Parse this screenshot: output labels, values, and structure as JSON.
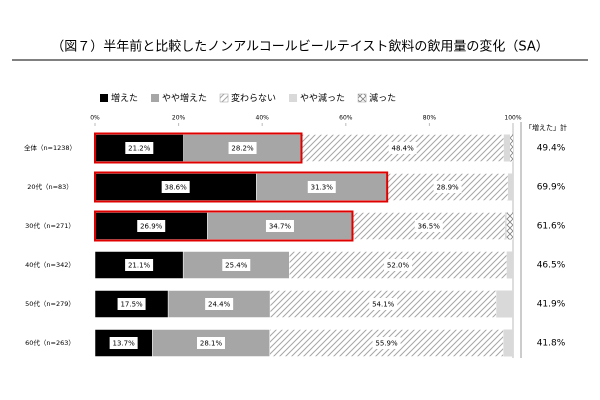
{
  "chart_data": {
    "type": "stacked_barh",
    "title": "（図７）半年前と比較したノンアルコールビールテイスト飲料の飲用量の変化（SA）",
    "categories": [
      "全体（n=1238）",
      "20代（n=83）",
      "30代（n=271）",
      "40代（n=342）",
      "50代（n=279）",
      "60代（n=263）"
    ],
    "series": [
      {
        "name": "増えた",
        "color": "#000000",
        "values": [
          21.2,
          38.6,
          26.9,
          21.1,
          17.5,
          13.7
        ],
        "value_labels": [
          "21.2%",
          "38.6%",
          "26.9%",
          "21.1%",
          "17.5%",
          "13.7%"
        ]
      },
      {
        "name": "やや増えた",
        "color": "#a6a6a6",
        "values": [
          28.2,
          31.3,
          34.7,
          25.4,
          24.4,
          28.1
        ],
        "value_labels": [
          "28.2%",
          "31.3%",
          "34.7%",
          "25.4%",
          "24.4%",
          "28.1%"
        ]
      },
      {
        "name": "変わらない",
        "color": "#a6a6a6",
        "pattern": "diagonal",
        "values": [
          48.4,
          28.9,
          36.5,
          52.0,
          54.1,
          55.9
        ],
        "value_labels": [
          "48.4%",
          "28.9%",
          "36.5%",
          "52.0%",
          "54.1%",
          "55.9%"
        ]
      },
      {
        "name": "やや減った",
        "color": "#d9d9d9",
        "values": [
          1.5,
          1.2,
          0.4,
          1.5,
          4.0,
          2.3
        ]
      },
      {
        "name": "減った",
        "color": "#808080",
        "pattern": "cross",
        "values": [
          0.7,
          0,
          1.5,
          0,
          0,
          0
        ]
      }
    ],
    "xlim": [
      0,
      100
    ],
    "xticks": [
      {
        "value": 0,
        "label": "0%"
      },
      {
        "value": 20,
        "label": "20%"
      },
      {
        "value": 40,
        "label": "40%"
      },
      {
        "value": 60,
        "label": "60%"
      },
      {
        "value": 80,
        "label": "80%"
      },
      {
        "value": 100,
        "label": "100%"
      }
    ],
    "highlight": [
      0,
      1,
      2
    ],
    "highlight_color": "#e00000",
    "totals": {
      "title": "「増えた」計",
      "values": [
        49.4,
        69.9,
        61.6,
        46.5,
        41.9,
        41.8
      ],
      "value_labels": [
        "49.4%",
        "69.9%",
        "61.6%",
        "46.5%",
        "41.9%",
        "41.8%"
      ]
    },
    "legend": "top-left"
  }
}
